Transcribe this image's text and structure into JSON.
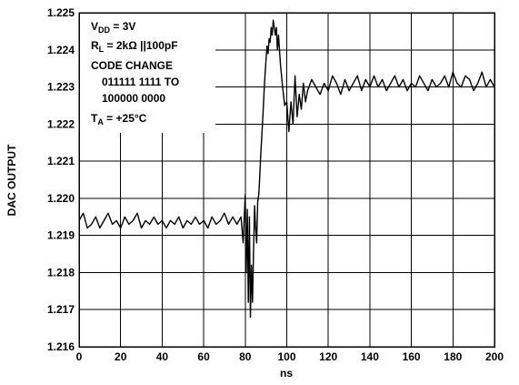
{
  "chart_data": {
    "type": "line",
    "xlabel": "ns",
    "ylabel": "DAC OUTPUT",
    "xlim": [
      0,
      200
    ],
    "ylim": [
      1.216,
      1.225
    ],
    "grid": true,
    "x_ticks": [
      "0",
      "20",
      "40",
      "60",
      "80",
      "100",
      "120",
      "140",
      "160",
      "180",
      "200"
    ],
    "y_ticks": [
      "1.216",
      "1.217",
      "1.218",
      "1.219",
      "1.220",
      "1.221",
      "1.222",
      "1.223",
      "1.224",
      "1.225"
    ],
    "annotation": {
      "vdd": {
        "main": "V",
        "sub": "DD",
        "rest": " = 3V"
      },
      "rl": {
        "main": "R",
        "sub": "L",
        "rest": " = 2kΩ ||100pF"
      },
      "code_change": "CODE CHANGE",
      "code_from": "011111 1111 TO",
      "code_to": "100000 0000",
      "ta": {
        "main": "T",
        "sub": "A",
        "rest": " = +25°C"
      }
    },
    "series": [
      {
        "x": [
          0,
          2,
          4,
          6,
          8,
          10,
          12,
          14,
          16,
          18,
          20,
          22,
          24,
          26,
          28,
          30,
          32,
          34,
          36,
          38,
          40,
          42,
          44,
          46,
          48,
          50,
          52,
          54,
          56,
          58,
          60,
          62,
          64,
          66,
          68,
          70,
          72,
          74,
          76,
          78,
          79,
          80,
          80.5,
          81,
          81.5,
          82,
          82.5,
          83,
          83.5,
          84,
          84.5,
          85,
          85.5,
          86,
          86.5,
          87,
          87.5,
          88,
          88.5,
          89,
          89.5,
          90,
          90.5,
          91,
          91.5,
          92,
          92.5,
          93,
          93.5,
          94,
          94.5,
          95,
          95.5,
          96,
          97,
          98,
          99,
          100,
          101,
          102,
          103,
          104,
          105,
          106,
          107,
          108,
          109,
          110,
          112,
          114,
          116,
          118,
          120,
          122,
          124,
          126,
          128,
          130,
          132,
          134,
          136,
          138,
          140,
          142,
          144,
          146,
          148,
          150,
          152,
          154,
          156,
          158,
          160,
          162,
          164,
          166,
          168,
          170,
          172,
          174,
          176,
          178,
          180,
          182,
          184,
          186,
          188,
          190,
          192,
          194,
          196,
          198,
          200
        ],
        "y": [
          1.2194,
          1.2196,
          1.2192,
          1.2193,
          1.2195,
          1.2192,
          1.2194,
          1.2196,
          1.2193,
          1.2194,
          1.2192,
          1.2195,
          1.2193,
          1.2194,
          1.2196,
          1.2192,
          1.2194,
          1.2193,
          1.2195,
          1.2193,
          1.2194,
          1.2192,
          1.2194,
          1.2193,
          1.2195,
          1.2192,
          1.2194,
          1.2193,
          1.2195,
          1.2193,
          1.2194,
          1.2192,
          1.2195,
          1.2193,
          1.2194,
          1.2196,
          1.2193,
          1.2195,
          1.2193,
          1.2195,
          1.2188,
          1.2201,
          1.218,
          1.2197,
          1.2172,
          1.2195,
          1.2168,
          1.2182,
          1.2172,
          1.2185,
          1.2198,
          1.2192,
          1.2188,
          1.2199,
          1.2201,
          1.2206,
          1.2212,
          1.2217,
          1.2222,
          1.2228,
          1.2233,
          1.2237,
          1.2241,
          1.2239,
          1.2243,
          1.2242,
          1.2246,
          1.2244,
          1.2248,
          1.2246,
          1.2244,
          1.2246,
          1.224,
          1.2244,
          1.2236,
          1.223,
          1.2225,
          1.2226,
          1.2218,
          1.2226,
          1.222,
          1.2233,
          1.2222,
          1.2228,
          1.2224,
          1.2231,
          1.2226,
          1.2229,
          1.2232,
          1.223,
          1.2228,
          1.2231,
          1.2229,
          1.2233,
          1.2231,
          1.2228,
          1.2232,
          1.2229,
          1.2231,
          1.2233,
          1.2229,
          1.2232,
          1.223,
          1.2233,
          1.223,
          1.2232,
          1.2229,
          1.2231,
          1.2233,
          1.223,
          1.2232,
          1.2229,
          1.2231,
          1.223,
          1.2233,
          1.2231,
          1.2229,
          1.2232,
          1.223,
          1.2231,
          1.2233,
          1.223,
          1.2234,
          1.2231,
          1.223,
          1.2233,
          1.2232,
          1.2229,
          1.2231,
          1.2234,
          1.223,
          1.2232,
          1.223
        ]
      }
    ]
  }
}
